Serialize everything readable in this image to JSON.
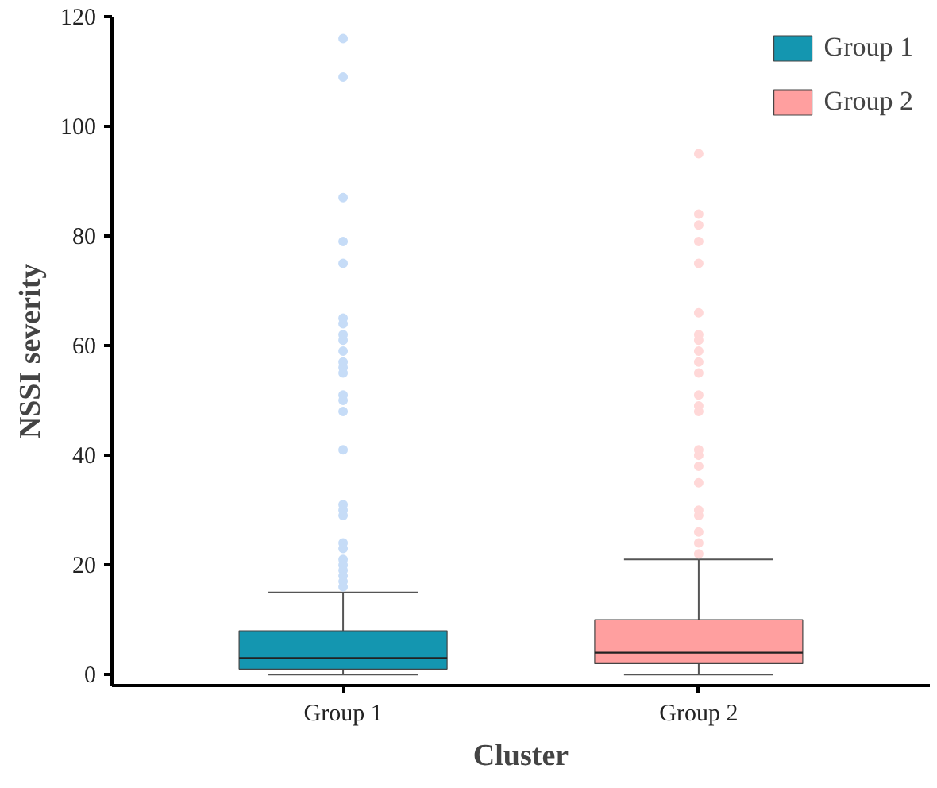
{
  "chart_data": {
    "type": "box",
    "xlabel": "Cluster",
    "ylabel": "NSSI severity",
    "categories": [
      "Group 1",
      "Group 2"
    ],
    "series": [
      {
        "name": "Group 1",
        "color": "#1496b0",
        "boxes": [
          {
            "low": 0,
            "q1": 1,
            "median": 3,
            "q3": 8,
            "high": 15,
            "outliers": [
              116,
              109,
              87,
              79,
              75,
              65,
              64,
              62,
              61,
              59,
              57,
              56,
              55,
              51,
              50,
              48,
              41,
              31,
              30,
              29,
              24,
              23,
              21,
              20,
              19,
              18,
              17,
              16
            ]
          },
          null
        ]
      },
      {
        "name": "Group 2",
        "color": "#ff9f9f",
        "boxes": [
          null,
          {
            "low": 0,
            "q1": 2,
            "median": 4,
            "q3": 10,
            "high": 21,
            "outliers": [
              95,
              84,
              82,
              79,
              75,
              66,
              62,
              61,
              59,
              57,
              55,
              51,
              49,
              48,
              41,
              40,
              38,
              35,
              30,
              29,
              26,
              24,
              22
            ]
          }
        ]
      }
    ],
    "ylim": [
      -2,
      120
    ],
    "yticks": [
      0,
      20,
      40,
      60,
      80,
      100,
      120
    ],
    "grid": false,
    "legend": "top right"
  }
}
